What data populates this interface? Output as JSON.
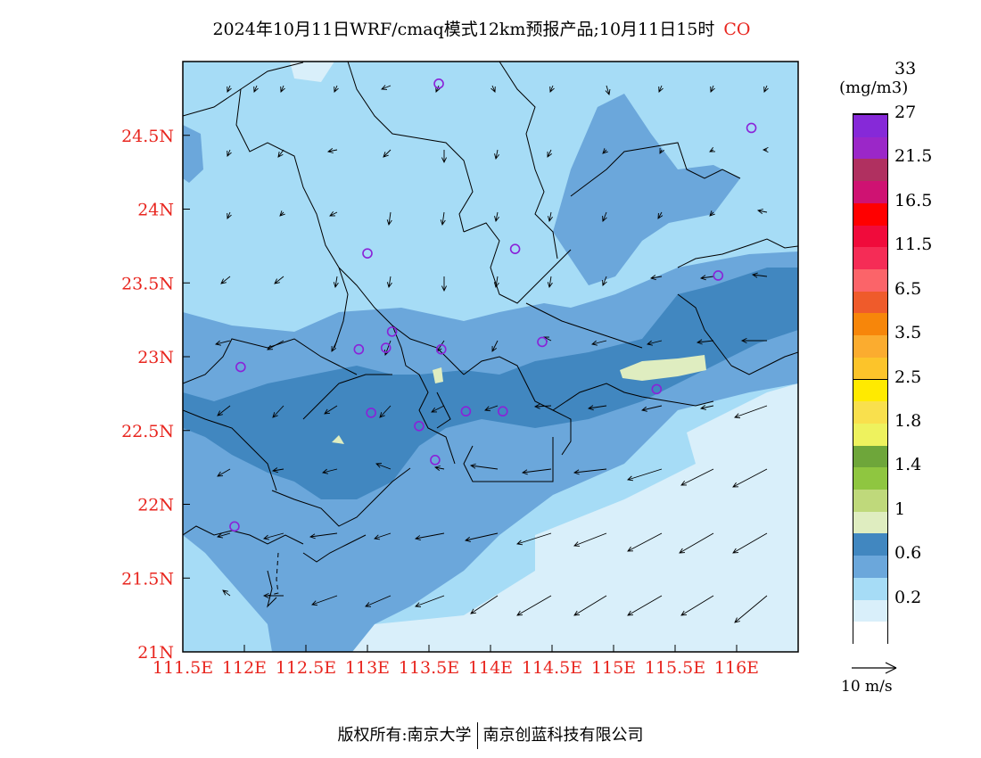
{
  "title": {
    "main": "2024年10月11日WRF/cmaq模式12km预报产品;10月11日15时",
    "species": "CO",
    "species_color": "#e8261f"
  },
  "map": {
    "lon_range": [
      111.5,
      116.5
    ],
    "lat_range": [
      21.0,
      25.0
    ],
    "lon_labels": [
      "111.5E",
      "112E",
      "112.5E",
      "113E",
      "113.5E",
      "114E",
      "114.5E",
      "115E",
      "115.5E",
      "116E"
    ],
    "lat_labels": [
      "21N",
      "21.5N",
      "22N",
      "22.5N",
      "23N",
      "23.5N",
      "24N",
      "24.5N"
    ],
    "label_color": "#e8261f",
    "monitoring_stations": [
      [
        113.58,
        24.85
      ],
      [
        116.12,
        24.55
      ],
      [
        113.0,
        23.7
      ],
      [
        114.2,
        23.73
      ],
      [
        115.85,
        23.55
      ],
      [
        113.2,
        23.17
      ],
      [
        112.93,
        23.05
      ],
      [
        113.6,
        23.05
      ],
      [
        114.42,
        23.1
      ],
      [
        113.15,
        23.06
      ],
      [
        111.97,
        22.93
      ],
      [
        113.8,
        22.63
      ],
      [
        113.03,
        22.62
      ],
      [
        114.1,
        22.63
      ],
      [
        115.35,
        22.78
      ],
      [
        113.42,
        22.53
      ],
      [
        113.55,
        22.3
      ],
      [
        111.92,
        21.85
      ]
    ],
    "station_color": "#8a22d8"
  },
  "legend": {
    "unit": "(mg/m3)",
    "colors": [
      "#ffffff",
      "#d9effa",
      "#a6dcf6",
      "#6ba7db",
      "#4187c0",
      "#dfedc0",
      "#bfd97b",
      "#8fc640",
      "#6ea63a",
      "#eef25e",
      "#f9e04d",
      "#ffea00",
      "#fcc42a",
      "#fbac2f",
      "#f7860a",
      "#ef5b2b",
      "#fb6469",
      "#f52c56",
      "#f00b3b",
      "#ff0000",
      "#cf1272",
      "#b03060",
      "#9b27c8",
      "#8629d8"
    ],
    "labels": [
      "0.2",
      "0.6",
      "1",
      "1.4",
      "1.8",
      "2.5",
      "3.5",
      "6.5",
      "11.5",
      "16.5",
      "21.5",
      "27",
      "33"
    ]
  },
  "wind_scale": {
    "label": "10 m/s"
  },
  "footer": {
    "copyright_left": "版权所有:南京大学",
    "copyright_right": "南京创蓝科技有限公司"
  }
}
